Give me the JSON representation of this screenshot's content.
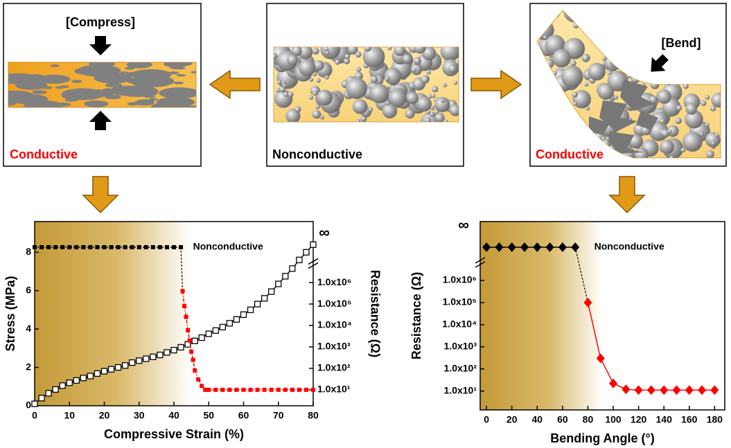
{
  "panels": [
    {
      "label": "[Compress]",
      "state": "Conductive"
    },
    {
      "state": "Nonconductive"
    },
    {
      "label": "[Bend]",
      "state": "Conductive"
    }
  ],
  "chart_data": [
    {
      "type": "line",
      "xlabel": "Compressive Strain (%)",
      "ylabel": "Stress (MPa)",
      "y2label": "Resistance (Ω)",
      "xlim": [
        0,
        80
      ],
      "xticks": [
        0,
        10,
        20,
        30,
        40,
        50,
        60,
        70,
        80
      ],
      "ylim": [
        0,
        9.6
      ],
      "yticks": [
        0,
        2,
        4,
        6,
        8
      ],
      "y2lim": [
        1.8,
        700000000
      ],
      "y2log": true,
      "y2ticks": [
        {
          "value": 10,
          "label": "1.0x10¹"
        },
        {
          "value": 100,
          "label": "1.0x10²"
        },
        {
          "value": 1000,
          "label": "1.0x10³"
        },
        {
          "value": 10000,
          "label": "1.0x10⁴"
        },
        {
          "value": 100000,
          "label": "1.0x10⁵"
        },
        {
          "value": 1000000,
          "label": "1.0x10⁶"
        }
      ],
      "infinity_label": "∞",
      "annotation": "Nonconductive",
      "series": [
        {
          "color": "#000000",
          "marker": "square-open",
          "line_style": "solid",
          "x": [
            0,
            2,
            4,
            6,
            8,
            10,
            12,
            14,
            16,
            18,
            20,
            22,
            24,
            26,
            28,
            30,
            32,
            34,
            36,
            38,
            40,
            42,
            44,
            46,
            48,
            50,
            52,
            54,
            56,
            58,
            60,
            62,
            64,
            66,
            68,
            70,
            72,
            74,
            76,
            78,
            80
          ],
          "values": [
            0.1,
            0.4,
            0.65,
            0.85,
            1.05,
            1.2,
            1.32,
            1.45,
            1.55,
            1.68,
            1.8,
            1.9,
            2.0,
            2.1,
            2.25,
            2.35,
            2.45,
            2.55,
            2.65,
            2.78,
            2.9,
            3.05,
            3.2,
            3.38,
            3.55,
            3.75,
            3.92,
            4.1,
            4.3,
            4.5,
            4.75,
            5.0,
            5.3,
            5.6,
            5.95,
            6.35,
            6.75,
            7.15,
            7.6,
            8.0,
            8.4
          ]
        },
        {
          "color": "#000000",
          "marker": "square",
          "line_style": "dotted",
          "axis": "y2",
          "at_infinity": true,
          "x": [
            0,
            2,
            4,
            6,
            8,
            10,
            12,
            14,
            16,
            18,
            20,
            22,
            24,
            26,
            28,
            30,
            32,
            34,
            36,
            38,
            40,
            42
          ]
        },
        {
          "color": "#ff0000",
          "marker": "square",
          "line_style": "dashdot",
          "axis": "y2",
          "x": [
            42.5,
            43,
            43.5,
            44,
            44.5,
            45,
            45.5,
            46,
            47,
            48,
            49,
            50,
            52,
            54,
            56,
            58,
            60,
            62,
            64,
            66,
            68,
            70,
            72,
            74,
            76,
            78,
            80
          ],
          "values": [
            400000,
            80000,
            25000,
            6000,
            2000,
            600,
            250,
            80,
            30,
            15,
            10,
            10,
            10,
            10,
            10,
            10,
            10,
            10,
            10,
            10,
            10,
            10,
            10,
            10,
            10,
            10,
            10
          ]
        }
      ]
    },
    {
      "type": "line",
      "xlabel": "Bending Angle (°)",
      "ylabel": "Resistance (Ω)",
      "xlim": [
        -5,
        188
      ],
      "xticks": [
        0,
        20,
        40,
        60,
        80,
        100,
        120,
        140,
        160,
        180
      ],
      "ylim": [
        1.4,
        460000000
      ],
      "ylog": true,
      "yticks": [
        {
          "value": 10,
          "label": "1.0x10¹"
        },
        {
          "value": 100,
          "label": "1.0x10²"
        },
        {
          "value": 1000,
          "label": "1.0x10³"
        },
        {
          "value": 10000,
          "label": "1.0x10⁴"
        },
        {
          "value": 100000,
          "label": "1.0x10⁵"
        },
        {
          "value": 1000000,
          "label": "1.0x10⁶"
        }
      ],
      "infinity_label": "∞",
      "annotation": "Nonconductive",
      "series": [
        {
          "color": "#000000",
          "marker": "diamond",
          "line_style": "solid",
          "at_infinity": true,
          "x": [
            0,
            10,
            20,
            30,
            40,
            50,
            60,
            70
          ]
        },
        {
          "color": "#ff0000",
          "marker": "diamond",
          "line_style": "solid",
          "x": [
            80,
            90,
            100,
            110,
            120,
            130,
            140,
            150,
            160,
            170,
            180
          ],
          "values": [
            100000,
            300,
            22,
            12,
            11,
            11,
            11,
            11,
            11,
            11,
            11
          ]
        }
      ]
    }
  ]
}
